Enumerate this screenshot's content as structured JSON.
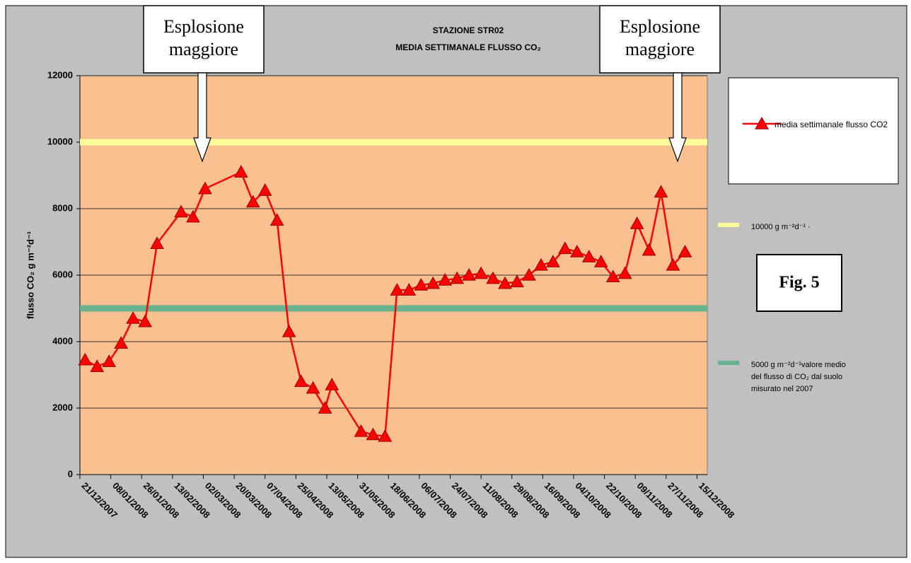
{
  "chart_data": {
    "type": "line",
    "title": "STAZIONE STR02",
    "subtitle": "MEDIA SETTIMANALE FLUSSO CO₂",
    "y_label": "flusso CO₂ g m⁻²d⁻¹",
    "x": [
      "24/12/2007",
      "31/12/2007",
      "07/01/2008",
      "14/01/2008",
      "21/01/2008",
      "28/01/2008",
      "04/02/2008",
      "18/02/2008",
      "25/02/2008",
      "03/03/2008",
      "24/03/2008",
      "31/03/2008",
      "07/04/2008",
      "14/04/2008",
      "21/04/2008",
      "28/04/2008",
      "05/05/2008",
      "12/05/2008",
      "16/05/2008",
      "02/06/2008",
      "09/06/2008",
      "16/06/2008",
      "23/06/2008",
      "30/06/2008",
      "07/07/2008",
      "14/07/2008",
      "21/07/2008",
      "28/07/2008",
      "04/08/2008",
      "11/08/2008",
      "18/08/2008",
      "25/08/2008",
      "01/09/2008",
      "08/09/2008",
      "15/09/2008",
      "22/09/2008",
      "29/09/2008",
      "06/10/2008",
      "13/10/2008",
      "20/10/2008",
      "27/10/2008",
      "03/11/2008",
      "10/11/2008",
      "17/11/2008",
      "24/11/2008",
      "01/12/2008",
      "08/12/2008"
    ],
    "series": [
      {
        "name": "media settimanale flusso CO2",
        "color": "#ff0000",
        "values": [
          3450,
          3250,
          3400,
          3950,
          4700,
          4600,
          6950,
          7900,
          7750,
          8600,
          9100,
          8200,
          8550,
          7650,
          4300,
          2800,
          2600,
          2000,
          2700,
          1300,
          1200,
          1150,
          5550,
          5550,
          5700,
          5750,
          5850,
          5900,
          6000,
          6050,
          5900,
          5750,
          5800,
          6000,
          6300,
          6400,
          6800,
          6700,
          6550,
          6400,
          5950,
          6050,
          7550,
          6750,
          8500,
          6300,
          6700
        ]
      }
    ],
    "reference_lines": [
      {
        "value": 10000,
        "color": "#ffff99",
        "label": [
          "10000 g m⁻²d⁻¹ ·"
        ]
      },
      {
        "value": 5000,
        "color": "#66b28c",
        "label": [
          "5000 g m⁻²d⁻¹valore medio",
          "del flusso di CO₂ dal suolo",
          "misurato nel 2007"
        ]
      }
    ],
    "xlim": [
      "21/12/2007",
      "21/12/2008"
    ],
    "xticks": [
      "21/12/2007",
      "08/01/2008",
      "26/01/2008",
      "13/02/2008",
      "02/03/2008",
      "20/03/2008",
      "07/04/2008",
      "25/04/2008",
      "13/05/2008",
      "31/05/2008",
      "18/06/2008",
      "06/07/2008",
      "24/07/2008",
      "11/08/2008",
      "29/08/2008",
      "16/09/2008",
      "04/10/2008",
      "22/10/2008",
      "09/11/2008",
      "27/11/2008",
      "15/12/2008"
    ],
    "ylim": [
      0,
      12000
    ],
    "yticks": [
      0,
      2000,
      4000,
      6000,
      8000,
      10000,
      12000
    ],
    "grid": true,
    "annotations": [
      "Esplosione maggiore",
      "Esplosione maggiore"
    ],
    "figure_label": "Fig. 5"
  }
}
